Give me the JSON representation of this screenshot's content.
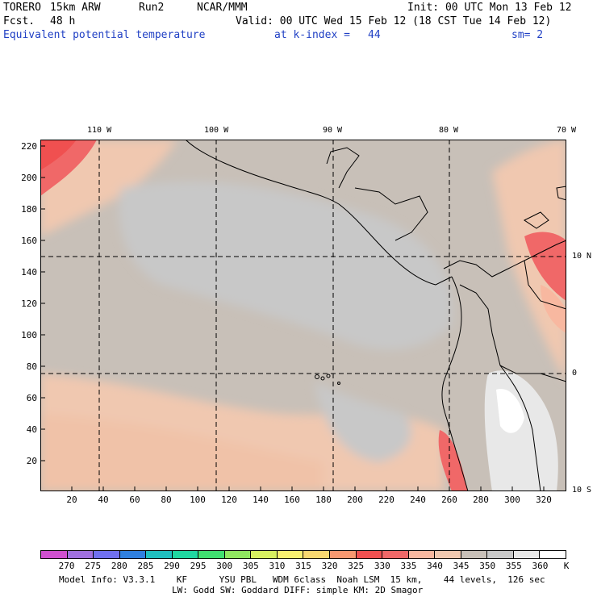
{
  "header": {
    "model": "TORERO",
    "resolution": "15km ARW",
    "run": "Run2",
    "org": "NCAR/MMM",
    "init": "Init: 00 UTC Mon 13 Feb 12",
    "fcst_label": "Fcst.",
    "fcst_value": "48 h",
    "valid": "Valid: 00 UTC Wed 15 Feb 12 (18 CST Tue 14 Feb 12)",
    "field": "Equivalent potential temperature",
    "level": "at k-index =",
    "level_value": "44",
    "smoothing": "sm= 2"
  },
  "map": {
    "lon_labels": [
      "110 W",
      "100 W",
      "90 W",
      "80 W",
      "70 W"
    ],
    "lat_labels": [
      "10 N",
      "0",
      "10 S"
    ],
    "y_ticks": [
      "220",
      "200",
      "180",
      "160",
      "140",
      "120",
      "100",
      "80",
      "60",
      "40",
      "20"
    ],
    "x_ticks": [
      "20",
      "40",
      "60",
      "80",
      "100",
      "120",
      "140",
      "160",
      "180",
      "200",
      "220",
      "240",
      "260",
      "280",
      "300",
      "320"
    ],
    "land_color": "#c8c8c8",
    "ocean_color": "#c8c0b8"
  },
  "colorbar": {
    "labels": [
      "270",
      "275",
      "280",
      "285",
      "290",
      "295",
      "300",
      "305",
      "310",
      "315",
      "320",
      "325",
      "330",
      "335",
      "340",
      "345",
      "350",
      "355",
      "360",
      "K"
    ],
    "colors": [
      "#d050d0",
      "#a070e0",
      "#7070f0",
      "#3080e0",
      "#20c0c0",
      "#20d8a0",
      "#40e070",
      "#90e860",
      "#d8f060",
      "#f8f070",
      "#f8d870",
      "#f89870",
      "#f05050",
      "#f06868",
      "#f8b8a0",
      "#f0c8b0",
      "#c8c0b8",
      "#c8c8c8",
      "#e8e8e8",
      "#ffffff"
    ]
  },
  "footer": {
    "line1": "Model Info: V3.3.1    KF      YSU PBL   WDM 6class  Noah LSM  15 km,    44 levels,  126 sec",
    "line2": "LW: Godd SW: Goddard DIFF: simple KM: 2D Smagor"
  }
}
